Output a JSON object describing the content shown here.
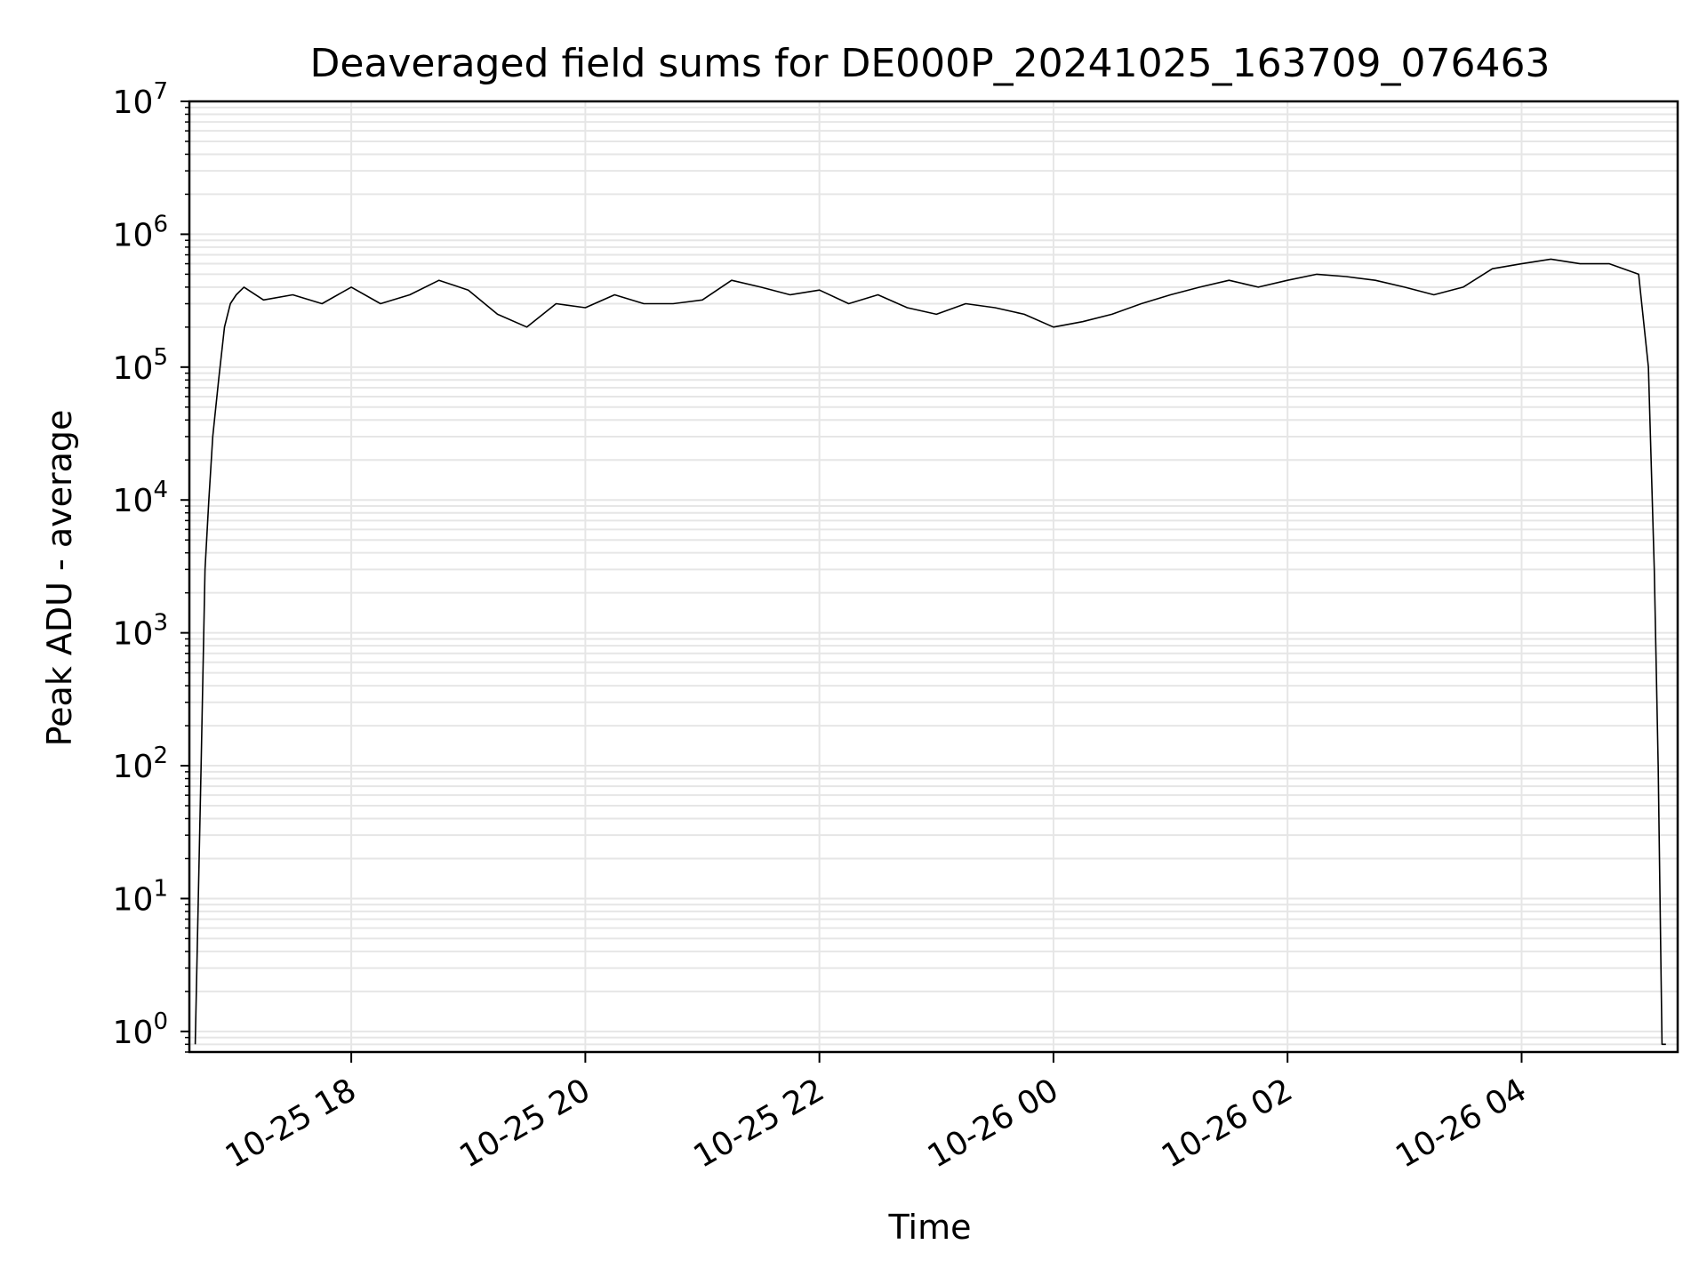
{
  "chart_data": {
    "type": "line",
    "title": "Deaveraged field sums for DE000P_20241025_163709_076463",
    "xlabel": "Time",
    "ylabel": "Peak ADU - average",
    "yscale": "log",
    "ylim": [
      0.7,
      10000000
    ],
    "xlim": [
      "2024-10-25 16:37",
      "2024-10-26 05:20"
    ],
    "grid": true,
    "legend": "none",
    "line_color": "#000000",
    "grid_color": "#e6e6e6",
    "x_ticks": [
      {
        "value": "2024-10-25 18:00",
        "label": "10-25 18"
      },
      {
        "value": "2024-10-25 20:00",
        "label": "10-25 20"
      },
      {
        "value": "2024-10-25 22:00",
        "label": "10-25 22"
      },
      {
        "value": "2024-10-26 00:00",
        "label": "10-26 00"
      },
      {
        "value": "2024-10-26 02:00",
        "label": "10-26 02"
      },
      {
        "value": "2024-10-26 04:00",
        "label": "10-26 04"
      }
    ],
    "y_ticks": [
      {
        "value": 1,
        "base": "10",
        "exp": "0"
      },
      {
        "value": 10,
        "base": "10",
        "exp": "1"
      },
      {
        "value": 100,
        "base": "10",
        "exp": "2"
      },
      {
        "value": 1000,
        "base": "10",
        "exp": "3"
      },
      {
        "value": 10000,
        "base": "10",
        "exp": "4"
      },
      {
        "value": 100000,
        "base": "10",
        "exp": "5"
      },
      {
        "value": 1000000,
        "base": "10",
        "exp": "6"
      },
      {
        "value": 10000000,
        "base": "10",
        "exp": "7"
      }
    ],
    "series": [
      {
        "x": [
          "2024-10-25 16:40",
          "2024-10-25 16:43",
          "2024-10-25 16:45",
          "2024-10-25 16:47",
          "2024-10-25 16:49",
          "2024-10-25 16:52",
          "2024-10-25 16:55",
          "2024-10-25 16:58",
          "2024-10-25 17:01",
          "2024-10-25 17:05",
          "2024-10-25 17:15",
          "2024-10-25 17:30",
          "2024-10-25 17:45",
          "2024-10-25 18:00",
          "2024-10-25 18:15",
          "2024-10-25 18:30",
          "2024-10-25 18:45",
          "2024-10-25 19:00",
          "2024-10-25 19:15",
          "2024-10-25 19:30",
          "2024-10-25 19:45",
          "2024-10-25 20:00",
          "2024-10-25 20:15",
          "2024-10-25 20:30",
          "2024-10-25 20:45",
          "2024-10-25 21:00",
          "2024-10-25 21:15",
          "2024-10-25 21:30",
          "2024-10-25 21:45",
          "2024-10-25 22:00",
          "2024-10-25 22:15",
          "2024-10-25 22:30",
          "2024-10-25 22:45",
          "2024-10-25 23:00",
          "2024-10-25 23:15",
          "2024-10-25 23:30",
          "2024-10-25 23:45",
          "2024-10-26 00:00",
          "2024-10-26 00:15",
          "2024-10-26 00:30",
          "2024-10-26 00:45",
          "2024-10-26 01:00",
          "2024-10-26 01:15",
          "2024-10-26 01:30",
          "2024-10-26 01:45",
          "2024-10-26 02:00",
          "2024-10-26 02:15",
          "2024-10-26 02:30",
          "2024-10-26 02:45",
          "2024-10-26 03:00",
          "2024-10-26 03:15",
          "2024-10-26 03:30",
          "2024-10-26 03:45",
          "2024-10-26 04:00",
          "2024-10-26 04:15",
          "2024-10-26 04:30",
          "2024-10-26 04:45",
          "2024-10-26 05:00",
          "2024-10-26 05:05",
          "2024-10-26 05:08",
          "2024-10-26 05:10",
          "2024-10-26 05:12",
          "2024-10-26 05:14"
        ],
        "y": [
          0.8,
          100,
          3000,
          10000,
          30000,
          80000,
          200000,
          300000,
          350000,
          400000,
          320000,
          350000,
          300000,
          400000,
          300000,
          350000,
          450000,
          380000,
          250000,
          200000,
          300000,
          280000,
          350000,
          300000,
          300000,
          320000,
          450000,
          400000,
          350000,
          380000,
          300000,
          350000,
          280000,
          250000,
          300000,
          280000,
          250000,
          200000,
          220000,
          250000,
          300000,
          350000,
          400000,
          450000,
          400000,
          450000,
          500000,
          480000,
          450000,
          400000,
          350000,
          400000,
          550000,
          600000,
          650000,
          600000,
          600000,
          500000,
          100000,
          3000,
          100,
          0.8,
          0.8
        ]
      }
    ]
  }
}
